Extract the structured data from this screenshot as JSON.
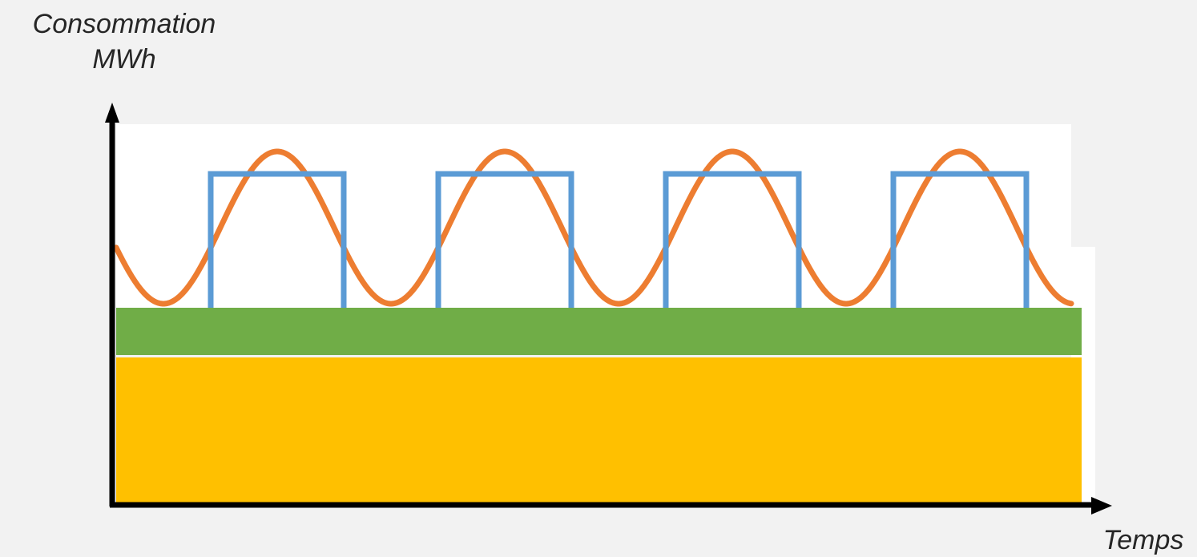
{
  "y_axis": {
    "label_line1": "Consommation",
    "label_line2": "MWh"
  },
  "x_axis": {
    "label": "Temps"
  },
  "colors": {
    "background": "#f2f2f2",
    "plot_area": "#ffffff",
    "base_band": "#ffc000",
    "middle_band": "#70ad47",
    "sine_curve": "#ed7d31",
    "square_pulses": "#5b9bd5",
    "axis": "#000000"
  },
  "pulse_count": 4,
  "sine_periods": 4.2
}
